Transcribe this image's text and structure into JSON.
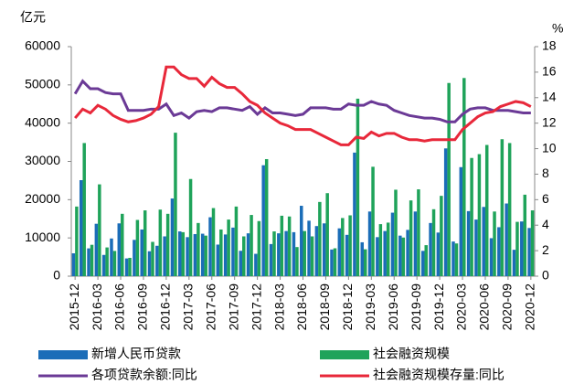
{
  "chart_data": {
    "type": "bar",
    "y_label": "亿元",
    "y2_label": "%",
    "categories": [
      "2015-12",
      null,
      null,
      "2016-03",
      null,
      null,
      "2016-06",
      null,
      null,
      "2016-09",
      null,
      null,
      "2016-12",
      null,
      null,
      "2017-03",
      null,
      null,
      "2017-06",
      null,
      null,
      "2017-09",
      null,
      null,
      "2017-12",
      null,
      null,
      "2018-03",
      null,
      null,
      "2018-06",
      null,
      null,
      "2018-09",
      null,
      null,
      "2018-12",
      null,
      null,
      "2019-03",
      null,
      null,
      "2019-06",
      null,
      null,
      "2019-09",
      null,
      null,
      "2019-12",
      null,
      null,
      "2020-03",
      null,
      null,
      "2020-06",
      null,
      null,
      "2020-09",
      null,
      null,
      "2020-12"
    ],
    "ylim": [
      0,
      60000
    ],
    "yticks": [
      0,
      10000,
      20000,
      30000,
      40000,
      50000,
      60000
    ],
    "y2lim": [
      0,
      18
    ],
    "y2ticks": [
      0,
      2,
      4,
      6,
      8,
      10,
      12,
      14,
      16,
      18
    ],
    "grid": false,
    "legend": "bottom",
    "series": [
      {
        "name": "新增人民币贷款",
        "type": "bar",
        "color": "#1b6db8",
        "values": [
          5978,
          25100,
          7266,
          13700,
          5556,
          9855,
          13800,
          4636,
          9487,
          12200,
          6513,
          7946,
          10400,
          20300,
          11700,
          10200,
          11000,
          11100,
          15400,
          8255,
          10900,
          12700,
          6632,
          11200,
          5844,
          29000,
          8393,
          11200,
          11800,
          11500,
          18400,
          14500,
          13100,
          13800,
          6970,
          12500,
          10800,
          32300,
          8858,
          16900,
          10200,
          11800,
          16600,
          10600,
          12100,
          16900,
          6613,
          13900,
          11400,
          33400,
          9057,
          28500,
          17000,
          14800,
          18100,
          9927,
          12800,
          19000,
          6898,
          14300,
          12600
        ]
      },
      {
        "name": "社会融资规模",
        "type": "bar",
        "color": "#1fa35a",
        "values": [
          18200,
          34800,
          8200,
          24000,
          7510,
          6599,
          16300,
          4790,
          14700,
          17200,
          8963,
          17400,
          16300,
          37500,
          11500,
          25400,
          13900,
          10600,
          17800,
          12200,
          14800,
          18200,
          10400,
          16000,
          14400,
          30600,
          11700,
          15800,
          15600,
          7608,
          11800,
          10400,
          19400,
          21700,
          7288,
          15200,
          15900,
          46400,
          7030,
          28600,
          13600,
          14000,
          22600,
          10100,
          19800,
          22700,
          8108,
          17500,
          21000,
          50500,
          8554,
          51800,
          30900,
          31900,
          34300,
          16900,
          35800,
          34800,
          14200,
          21300,
          17200
        ]
      },
      {
        "name": "各项贷款余额:同比",
        "type": "line",
        "axis": "y2",
        "color": "#6b3a96",
        "values": [
          14.3,
          15.3,
          14.7,
          14.7,
          14.4,
          14.3,
          14.3,
          13.0,
          13.0,
          13.0,
          13.1,
          13.1,
          13.5,
          12.6,
          12.8,
          12.4,
          12.9,
          13.0,
          12.9,
          13.2,
          13.2,
          13.1,
          13.0,
          13.3,
          12.7,
          13.2,
          12.8,
          12.8,
          12.7,
          12.6,
          12.7,
          13.2,
          13.2,
          13.2,
          13.1,
          13.1,
          13.5,
          13.4,
          13.4,
          13.7,
          13.5,
          13.4,
          13.0,
          12.8,
          12.6,
          12.5,
          12.4,
          12.4,
          12.3,
          12.1,
          12.1,
          12.7,
          13.1,
          13.2,
          13.2,
          13.0,
          13.0,
          13.0,
          12.9,
          12.8,
          12.8
        ]
      },
      {
        "name": "社会融资规模存量:同比",
        "type": "line",
        "axis": "y2",
        "color": "#e8283a",
        "values": [
          12.4,
          13.1,
          12.8,
          13.4,
          13.1,
          12.6,
          12.3,
          12.1,
          12.2,
          12.4,
          12.7,
          13.3,
          16.4,
          16.4,
          15.8,
          15.5,
          15.5,
          14.9,
          15.6,
          15.1,
          14.8,
          14.8,
          14.3,
          13.7,
          13.4,
          12.8,
          12.4,
          12.0,
          11.8,
          11.5,
          11.5,
          11.5,
          11.2,
          10.9,
          10.6,
          10.3,
          10.3,
          10.9,
          10.8,
          11.3,
          11.0,
          11.2,
          11.2,
          10.9,
          10.7,
          10.7,
          10.6,
          10.7,
          10.7,
          10.7,
          10.7,
          11.5,
          12.0,
          12.5,
          12.8,
          12.9,
          13.3,
          13.5,
          13.7,
          13.6,
          13.3
        ]
      }
    ]
  }
}
